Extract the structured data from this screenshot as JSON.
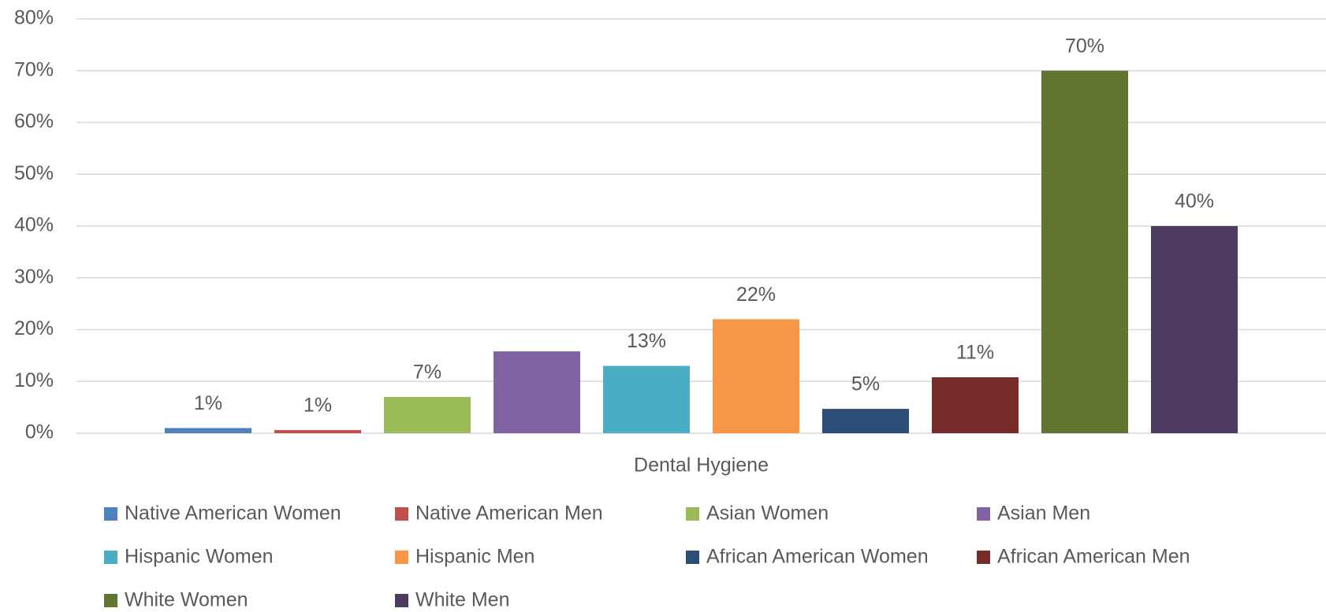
{
  "chart_data": {
    "type": "bar",
    "categories": [
      "Dental Hygiene"
    ],
    "series": [
      {
        "name": "Native American Women",
        "color": "#4f81bd",
        "values": [
          1.0
        ],
        "value_labels": [
          "1%"
        ]
      },
      {
        "name": "Native American Men",
        "color": "#c0504d",
        "values": [
          0.6
        ],
        "value_labels": [
          "1%"
        ]
      },
      {
        "name": "Asian Women",
        "color": "#9bbb59",
        "values": [
          7
        ],
        "value_labels": [
          "7%"
        ]
      },
      {
        "name": "Asian Men",
        "color": "#8064a2",
        "values": [
          15.8
        ]
      },
      {
        "name": "Hispanic Women",
        "color": "#4bacc6",
        "values": [
          13
        ],
        "value_labels": [
          "13%"
        ]
      },
      {
        "name": "Hispanic Men",
        "color": "#f79646",
        "values": [
          22
        ],
        "value_labels": [
          "22%"
        ]
      },
      {
        "name": "African American Women",
        "color": "#2c4d75",
        "values": [
          4.7
        ],
        "value_labels": [
          "5%"
        ]
      },
      {
        "name": "African American Men",
        "color": "#772c2a",
        "values": [
          10.8
        ],
        "value_labels": [
          "11%"
        ]
      },
      {
        "name": "White Women",
        "color": "#5f7530",
        "values": [
          70
        ],
        "value_labels": [
          "70%"
        ]
      },
      {
        "name": "White Men",
        "color": "#4d3b62",
        "values": [
          40
        ],
        "value_labels": [
          "40%"
        ]
      }
    ],
    "ylim": [
      0,
      80
    ],
    "yticks": [
      {
        "value": 0,
        "label": "0%"
      },
      {
        "value": 10,
        "label": "10%"
      },
      {
        "value": 20,
        "label": "20%"
      },
      {
        "value": 30,
        "label": "30%"
      },
      {
        "value": 40,
        "label": "40%"
      },
      {
        "value": 50,
        "label": "50%"
      },
      {
        "value": 60,
        "label": "60%"
      },
      {
        "value": 70,
        "label": "70%"
      },
      {
        "value": 80,
        "label": "80%"
      }
    ],
    "grid": true,
    "legend": "bottom"
  }
}
